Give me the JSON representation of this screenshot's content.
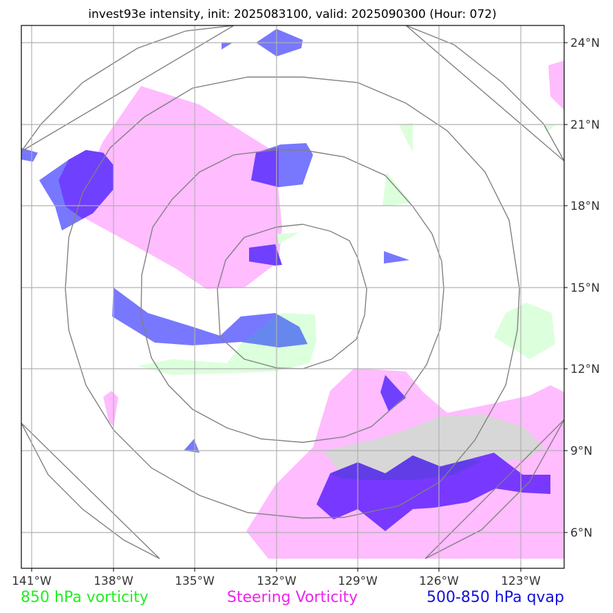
{
  "title": "invest93e intensity, init: 2025083100, valid: 2025090300 (Hour: 072)",
  "axes": {
    "x_ticks": [
      "141°W",
      "138°W",
      "135°W",
      "132°W",
      "129°W",
      "126°W",
      "123°W"
    ],
    "y_ticks": [
      "24°N",
      "21°N",
      "18°N",
      "15°N",
      "12°N",
      "9°N",
      "6°N"
    ]
  },
  "legend": [
    {
      "label": "850 hPa vorticity",
      "color": "#22ee22"
    },
    {
      "label": "Steering Vorticity",
      "color": "#ee22ee"
    },
    {
      "label": "500-850 hPa qvap",
      "color": "#1111dd"
    }
  ],
  "colors": {
    "vort850": "#dcffdc",
    "steering": "#ffbcff",
    "qvap": "#7878ff",
    "qvap_strong": "#7040ff",
    "grid": "#b0b0b0",
    "rings": "#808080"
  }
}
